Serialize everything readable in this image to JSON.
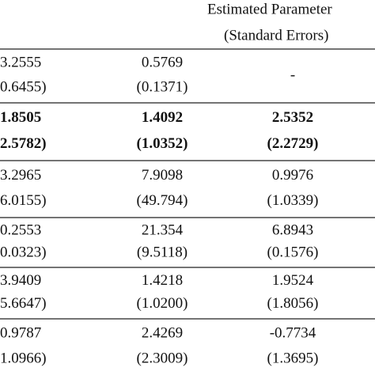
{
  "header": {
    "title": "Estimated Parameter",
    "subtitle": "(Standard Errors)"
  },
  "table": {
    "rows": [
      {
        "cells": [
          [
            "3.2555",
            "0.6455)"
          ],
          [
            "0.5769",
            "(0.1371)"
          ],
          [
            "-"
          ]
        ]
      },
      {
        "bold": true,
        "cells": [
          [
            "1.8505",
            "2.5782)"
          ],
          [
            "1.4092",
            "(1.0352)"
          ],
          [
            "2.5352",
            "(2.2729)"
          ]
        ]
      },
      {
        "cells": [
          [
            "3.2965",
            "6.0155)"
          ],
          [
            "7.9098",
            "(49.794)"
          ],
          [
            "0.9976",
            "(1.0339)"
          ]
        ]
      },
      {
        "cells": [
          [
            "0.2553",
            "0.0323)"
          ],
          [
            "21.354",
            "(9.5118)"
          ],
          [
            "6.8943",
            "(0.1576)"
          ]
        ]
      },
      {
        "cells": [
          [
            "3.9409",
            "5.6647)"
          ],
          [
            "1.4218",
            "(1.0200)"
          ],
          [
            "1.9524",
            "(1.8056)"
          ]
        ]
      },
      {
        "cells": [
          [
            "0.9787",
            "1.0966)"
          ],
          [
            "2.4269",
            "(2.3009)"
          ],
          [
            "-0.7734",
            "(1.3695)"
          ]
        ]
      }
    ]
  }
}
